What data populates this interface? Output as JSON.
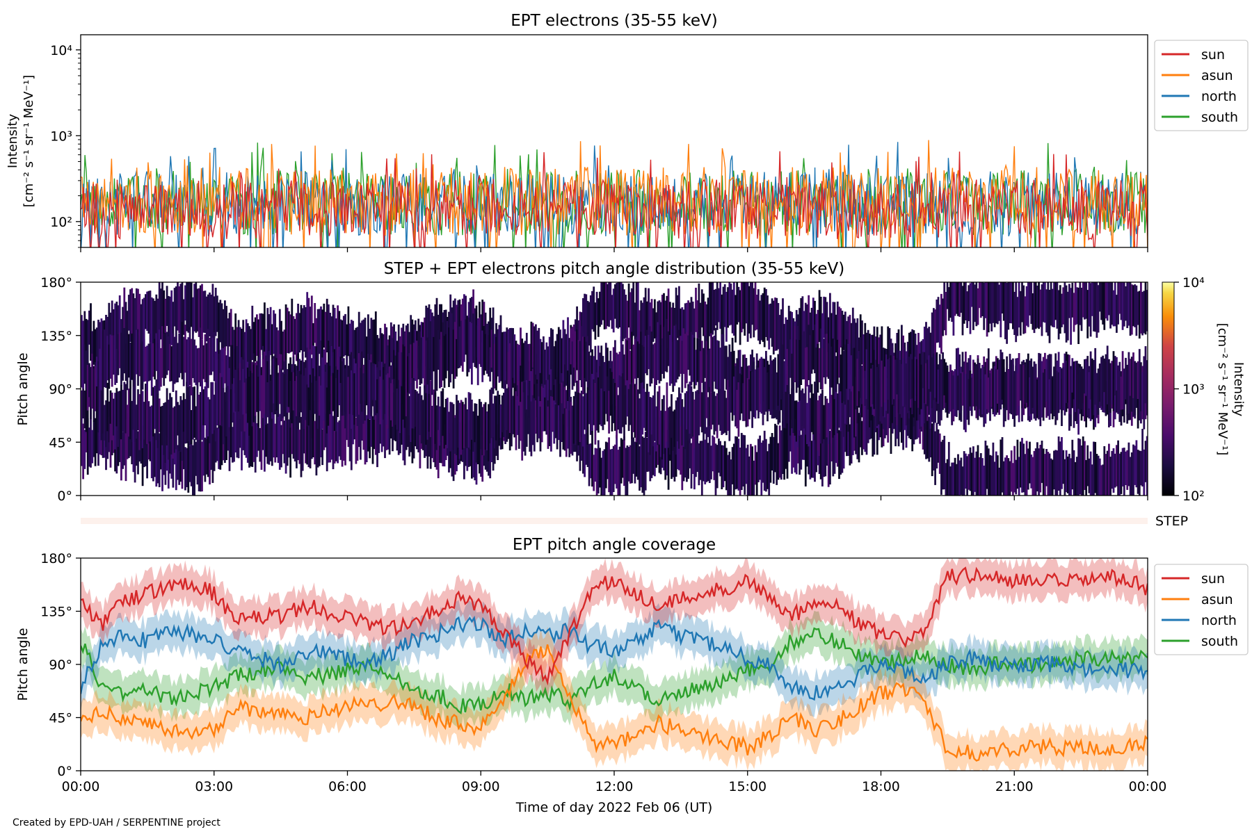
{
  "chart_data": [
    {
      "type": "line",
      "title": "EPT electrons (35-55 keV)",
      "ylabel": [
        "Intensity",
        "[cm⁻² s⁻¹ sr⁻¹ MeV⁻¹]"
      ],
      "yscale": "log",
      "ylim": [
        50,
        15000
      ],
      "yticks": [
        {
          "v": 100,
          "label": "10²"
        },
        {
          "v": 1000,
          "label": "10³"
        },
        {
          "v": 10000,
          "label": "10⁴"
        }
      ],
      "xlim_hours": [
        0,
        24
      ],
      "legend_position": "outside-top-right",
      "series": [
        {
          "name": "sun",
          "color": "#d62728",
          "baseline": 150,
          "spread": 0.35
        },
        {
          "name": "asun",
          "color": "#ff7f0e",
          "baseline": 190,
          "spread": 0.4
        },
        {
          "name": "north",
          "color": "#1f77b4",
          "baseline": 175,
          "spread": 0.38
        },
        {
          "name": "south",
          "color": "#2ca02c",
          "baseline": 180,
          "spread": 0.38
        }
      ],
      "draw_order": [
        "south",
        "north",
        "asun",
        "sun"
      ]
    },
    {
      "type": "heatmap",
      "title": "STEP + EPT electrons pitch angle distribution (35-55 keV)",
      "ylabel": "Pitch angle",
      "ylim": [
        0,
        180
      ],
      "yticks": [
        {
          "v": 0,
          "label": "0°"
        },
        {
          "v": 45,
          "label": "45°"
        },
        {
          "v": 90,
          "label": "90°"
        },
        {
          "v": 135,
          "label": "135°"
        },
        {
          "v": 180,
          "label": "180°"
        }
      ],
      "xlim_hours": [
        0,
        24
      ],
      "colorbar": {
        "label": [
          "Intensity",
          "[cm⁻² s⁻¹ sr⁻¹ MeV⁻¹]"
        ],
        "scale": "log",
        "range": [
          100,
          10000
        ],
        "ticks": [
          {
            "v": 100,
            "label": "10²"
          },
          {
            "v": 1000,
            "label": "10³"
          },
          {
            "v": 10000,
            "label": "10⁴"
          }
        ],
        "colormap": "inferno"
      },
      "typical_intensity": 150
    },
    {
      "type": "bar",
      "label": "STEP",
      "color": "#fdf1ec"
    },
    {
      "type": "line",
      "title": "EPT pitch angle coverage",
      "ylabel": "Pitch angle",
      "xlabel": "Time of day 2022 Feb 06 (UT)",
      "ylim": [
        0,
        180
      ],
      "yticks": [
        {
          "v": 0,
          "label": "0°"
        },
        {
          "v": 45,
          "label": "45°"
        },
        {
          "v": 90,
          "label": "90°"
        },
        {
          "v": 135,
          "label": "135°"
        },
        {
          "v": 180,
          "label": "180°"
        }
      ],
      "xlim_hours": [
        0,
        24
      ],
      "xticks": [
        {
          "h": 0,
          "label": "00:00"
        },
        {
          "h": 3,
          "label": "03:00"
        },
        {
          "h": 6,
          "label": "06:00"
        },
        {
          "h": 9,
          "label": "09:00"
        },
        {
          "h": 12,
          "label": "12:00"
        },
        {
          "h": 15,
          "label": "15:00"
        },
        {
          "h": 18,
          "label": "18:00"
        },
        {
          "h": 21,
          "label": "21:00"
        },
        {
          "h": 24,
          "label": "00:00"
        }
      ],
      "legend_position": "outside-top-right",
      "band_halfwidth_deg": 15,
      "series": [
        {
          "name": "sun",
          "color": "#d62728",
          "x": [
            0,
            0.5,
            1,
            1.5,
            2,
            2.5,
            3,
            3.5,
            4,
            4.5,
            5,
            5.5,
            6,
            6.5,
            7,
            7.5,
            8,
            8.5,
            9,
            9.5,
            10,
            10.5,
            11,
            11.5,
            12,
            12.5,
            13,
            13.5,
            14,
            14.5,
            15,
            15.5,
            16,
            16.5,
            17,
            17.5,
            18,
            18.5,
            19,
            19.5,
            20,
            20.5,
            21,
            21.5,
            22,
            22.5,
            23,
            23.5,
            24
          ],
          "y": [
            140,
            125,
            145,
            150,
            155,
            160,
            150,
            125,
            130,
            130,
            140,
            135,
            130,
            125,
            120,
            125,
            135,
            145,
            140,
            120,
            95,
            80,
            115,
            155,
            160,
            150,
            140,
            145,
            150,
            155,
            160,
            150,
            130,
            145,
            140,
            125,
            115,
            110,
            120,
            165,
            165,
            165,
            160,
            160,
            160,
            160,
            165,
            160,
            155
          ]
        },
        {
          "name": "asun",
          "color": "#ff7f0e",
          "x": [
            0,
            0.5,
            1,
            1.5,
            2,
            2.5,
            3,
            3.5,
            4,
            4.5,
            5,
            5.5,
            6,
            6.5,
            7,
            7.5,
            8,
            8.5,
            9,
            9.5,
            10,
            10.5,
            11,
            11.5,
            12,
            12.5,
            13,
            13.5,
            14,
            14.5,
            15,
            15.5,
            16,
            16.5,
            17,
            17.5,
            18,
            18.5,
            19,
            19.5,
            20,
            20.5,
            21,
            21.5,
            22,
            22.5,
            23,
            23.5,
            24
          ],
          "y": [
            40,
            50,
            45,
            40,
            35,
            30,
            35,
            55,
            50,
            50,
            45,
            50,
            55,
            55,
            60,
            55,
            45,
            40,
            35,
            60,
            90,
            105,
            65,
            25,
            20,
            30,
            40,
            35,
            30,
            25,
            20,
            30,
            45,
            35,
            40,
            55,
            65,
            70,
            60,
            15,
            15,
            15,
            20,
            20,
            20,
            20,
            15,
            20,
            25
          ]
        },
        {
          "name": "north",
          "color": "#1f77b4",
          "x": [
            0,
            0.5,
            1,
            1.5,
            2,
            2.5,
            3,
            3.5,
            4,
            4.5,
            5,
            5.5,
            6,
            6.5,
            7,
            7.5,
            8,
            8.5,
            9,
            9.5,
            10,
            10.5,
            11,
            11.5,
            12,
            12.5,
            13,
            13.5,
            14,
            14.5,
            15,
            15.5,
            16,
            16.5,
            17,
            17.5,
            18,
            18.5,
            19,
            19.5,
            20,
            20.5,
            21,
            21.5,
            22,
            22.5,
            23,
            23.5,
            24
          ],
          "y": [
            70,
            110,
            115,
            110,
            120,
            115,
            110,
            100,
            95,
            90,
            100,
            100,
            95,
            90,
            100,
            110,
            115,
            125,
            125,
            110,
            120,
            115,
            120,
            105,
            100,
            110,
            120,
            115,
            110,
            105,
            95,
            90,
            70,
            65,
            70,
            80,
            90,
            85,
            80,
            90,
            95,
            90,
            90,
            90,
            90,
            85,
            85,
            85,
            85
          ]
        },
        {
          "name": "south",
          "color": "#2ca02c",
          "x": [
            0,
            0.5,
            1,
            1.5,
            2,
            2.5,
            3,
            3.5,
            4,
            4.5,
            5,
            5.5,
            6,
            6.5,
            7,
            7.5,
            8,
            8.5,
            9,
            9.5,
            10,
            10.5,
            11,
            11.5,
            12,
            12.5,
            13,
            13.5,
            14,
            14.5,
            15,
            15.5,
            16,
            16.5,
            17,
            17.5,
            18,
            18.5,
            19,
            19.5,
            20,
            20.5,
            21,
            21.5,
            22,
            22.5,
            23,
            23.5,
            24
          ],
          "y": [
            110,
            70,
            65,
            70,
            60,
            65,
            70,
            80,
            85,
            90,
            80,
            80,
            85,
            90,
            80,
            70,
            65,
            55,
            55,
            70,
            60,
            65,
            60,
            75,
            80,
            70,
            60,
            65,
            70,
            75,
            85,
            90,
            110,
            115,
            110,
            100,
            90,
            95,
            100,
            90,
            85,
            90,
            90,
            90,
            90,
            95,
            95,
            95,
            95
          ]
        }
      ]
    }
  ],
  "footer": {
    "credit": "Created by EPD-UAH / SERPENTINE project"
  }
}
